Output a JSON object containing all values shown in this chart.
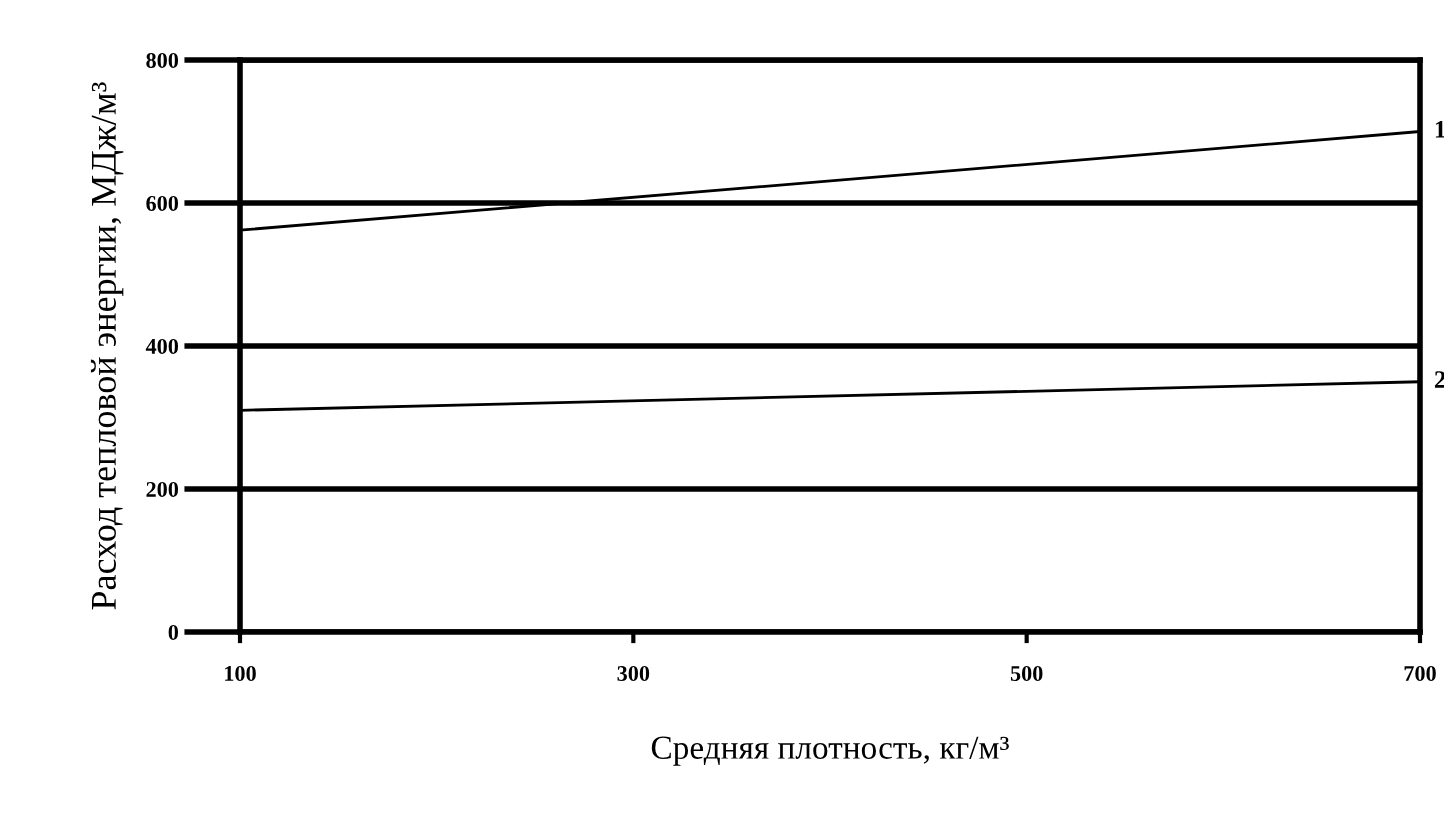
{
  "chart_data": {
    "type": "line",
    "xlabel": "Средняя плотность, кг/м³",
    "ylabel": "Расход тепловой энергии, МДж/м³",
    "x": [
      100,
      700
    ],
    "series": [
      {
        "name": "1",
        "color": "#000000",
        "values": [
          562,
          700
        ]
      },
      {
        "name": "2",
        "color": "#000000",
        "values": [
          310,
          350
        ]
      }
    ],
    "xlim": [
      100,
      700
    ],
    "xticks": [
      100,
      300,
      500,
      700
    ],
    "ylim": [
      0,
      800
    ],
    "yticks": [
      0,
      200,
      400,
      600,
      800
    ],
    "grid": "y",
    "marker": "none",
    "line_style": "solid"
  }
}
